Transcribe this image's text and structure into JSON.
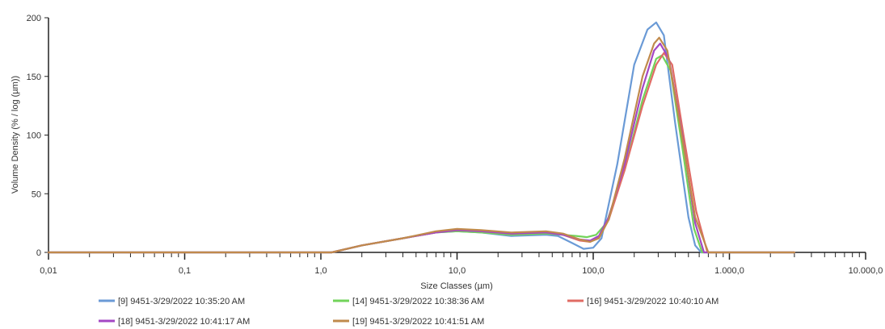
{
  "chart_data": {
    "type": "line",
    "xlabel": "Size Classes (µm)",
    "ylabel": "Volume Density (% / log (µm))",
    "x_scale": "log",
    "xlim": [
      0.01,
      10000
    ],
    "ylim": [
      0,
      200
    ],
    "x_tick_labels": [
      "0,01",
      "0,1",
      "1,0",
      "10,0",
      "100,0",
      "1.000,0",
      "10.000,0"
    ],
    "x_tick_values": [
      0.01,
      0.1,
      1,
      10,
      100,
      1000,
      10000
    ],
    "y_ticks": [
      0,
      50,
      100,
      150,
      200
    ],
    "grid": false,
    "legend_position": "bottom",
    "series": [
      {
        "name": "[9] 9451-3/29/2022 10:35:20 AM",
        "color": "#6a9ad6",
        "x": [
          0.01,
          1.0,
          1.2,
          2.0,
          4.0,
          7.0,
          10.0,
          15.0,
          25.0,
          45.0,
          55.0,
          70.0,
          85.0,
          100.0,
          115.0,
          150.0,
          200.0,
          250.0,
          290.0,
          330.0,
          400.0,
          500.0,
          560.0,
          620.0,
          3000.0
        ],
        "y": [
          0,
          0,
          0,
          6,
          12,
          17,
          18,
          17,
          14,
          15,
          14,
          8,
          3,
          4,
          12,
          75,
          160,
          190,
          196,
          185,
          110,
          30,
          6,
          0,
          0
        ]
      },
      {
        "name": "[14] 9451-3/29/2022 10:38:36 AM",
        "color": "#72d35a",
        "x": [
          0.01,
          1.0,
          1.2,
          2.0,
          4.0,
          7.0,
          10.0,
          15.0,
          25.0,
          45.0,
          60.0,
          75.0,
          90.0,
          105.0,
          125.0,
          170.0,
          230.0,
          290.0,
          320.0,
          370.0,
          450.0,
          550.0,
          630.0,
          3000.0
        ],
        "y": [
          0,
          0,
          0,
          6,
          12,
          17,
          18,
          17,
          15,
          16,
          15,
          14,
          13,
          15,
          25,
          70,
          130,
          165,
          168,
          155,
          90,
          20,
          0,
          0
        ]
      },
      {
        "name": "[16] 9451-3/29/2022 10:40:10 AM",
        "color": "#e06b64",
        "x": [
          0.01,
          1.0,
          1.2,
          2.0,
          4.0,
          7.0,
          10.0,
          15.0,
          25.0,
          45.0,
          60.0,
          80.0,
          95.0,
          110.0,
          130.0,
          170.0,
          230.0,
          290.0,
          330.0,
          380.0,
          460.0,
          570.0,
          690.0,
          3000.0
        ],
        "y": [
          0,
          0,
          0,
          6,
          12,
          17,
          19,
          18,
          16,
          17,
          15,
          10,
          9,
          13,
          28,
          70,
          125,
          160,
          170,
          160,
          100,
          35,
          0,
          0
        ]
      },
      {
        "name": "[18] 9451-3/29/2022 10:41:17 AM",
        "color": "#a347c4",
        "x": [
          0.01,
          1.0,
          1.2,
          2.0,
          4.0,
          7.0,
          10.0,
          15.0,
          25.0,
          45.0,
          60.0,
          80.0,
          95.0,
          110.0,
          130.0,
          170.0,
          230.0,
          280.0,
          310.0,
          360.0,
          450.0,
          560.0,
          650.0,
          3000.0
        ],
        "y": [
          0,
          0,
          0,
          6,
          12,
          17,
          19,
          18,
          16,
          17,
          15,
          11,
          10,
          14,
          30,
          75,
          140,
          172,
          178,
          165,
          100,
          25,
          0,
          0
        ]
      },
      {
        "name": "[19] 9451-3/29/2022 10:41:51 AM",
        "color": "#c08a4c",
        "x": [
          0.01,
          1.0,
          1.2,
          2.0,
          4.0,
          7.0,
          10.0,
          15.0,
          25.0,
          45.0,
          60.0,
          80.0,
          95.0,
          110.0,
          130.0,
          170.0,
          230.0,
          280.0,
          305.0,
          350.0,
          440.0,
          560.0,
          700.0,
          3000.0
        ],
        "y": [
          0,
          0,
          0,
          6,
          12,
          18,
          20,
          19,
          17,
          18,
          16,
          11,
          9,
          12,
          28,
          80,
          150,
          178,
          183,
          172,
          105,
          30,
          0,
          0
        ]
      }
    ]
  }
}
